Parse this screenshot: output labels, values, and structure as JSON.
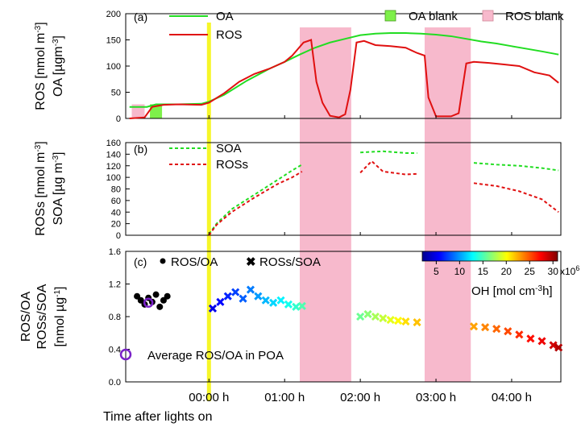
{
  "chart_data": [
    {
      "type": "line",
      "panel_label": "(a)",
      "ylabel_lines": [
        "ROS [nmol m",
        "-3",
        "]",
        "OA [µgm",
        "-3",
        "]"
      ],
      "yticks": [
        "0",
        "50",
        "100",
        "150",
        "200"
      ],
      "ylim": [
        0,
        200
      ],
      "xlim": [
        -1.1,
        4.65
      ],
      "legend": [
        {
          "name": "OA",
          "color": "#22dd22",
          "style": "solid"
        },
        {
          "name": "ROS",
          "color": "#e01010",
          "style": "solid"
        }
      ],
      "blank_legend": [
        {
          "name": "OA blank",
          "color": "#7ef04a"
        },
        {
          "name": "ROS blank",
          "color": "#f7b9cc"
        }
      ],
      "series": [
        {
          "name": "OA",
          "points": [
            [
              -1.05,
              22
            ],
            [
              -0.82,
              22
            ],
            [
              -0.7,
              27
            ],
            [
              -0.4,
              27
            ],
            [
              -0.1,
              28
            ],
            [
              0,
              32
            ],
            [
              0.2,
              45
            ],
            [
              0.5,
              72
            ],
            [
              0.8,
              95
            ],
            [
              1,
              108
            ],
            [
              1.2,
              122
            ],
            [
              1.4,
              135
            ],
            [
              1.6,
              145
            ],
            [
              1.8,
              152
            ],
            [
              2.0,
              159
            ],
            [
              2.2,
              162
            ],
            [
              2.4,
              163
            ],
            [
              2.6,
              163
            ],
            [
              2.8,
              162
            ],
            [
              3.0,
              160
            ],
            [
              3.2,
              157
            ],
            [
              3.4,
              152
            ],
            [
              3.6,
              147
            ],
            [
              3.8,
              143
            ],
            [
              4.0,
              138
            ],
            [
              4.2,
              133
            ],
            [
              4.4,
              128
            ],
            [
              4.62,
              122
            ]
          ]
        },
        {
          "name": "ROS",
          "points": [
            [
              -1.05,
              0
            ],
            [
              -0.85,
              2
            ],
            [
              -0.75,
              22
            ],
            [
              -0.6,
              26
            ],
            [
              -0.4,
              27
            ],
            [
              -0.1,
              26
            ],
            [
              0,
              30
            ],
            [
              0.2,
              48
            ],
            [
              0.4,
              70
            ],
            [
              0.6,
              85
            ],
            [
              0.8,
              95
            ],
            [
              1.0,
              108
            ],
            [
              1.1,
              120
            ],
            [
              1.25,
              145
            ],
            [
              1.35,
              150
            ],
            [
              1.42,
              70
            ],
            [
              1.5,
              30
            ],
            [
              1.6,
              5
            ],
            [
              1.72,
              2
            ],
            [
              1.8,
              8
            ],
            [
              1.87,
              55
            ],
            [
              1.95,
              145
            ],
            [
              2.05,
              148
            ],
            [
              2.2,
              140
            ],
            [
              2.4,
              138
            ],
            [
              2.6,
              135
            ],
            [
              2.75,
              125
            ],
            [
              2.85,
              120
            ],
            [
              2.9,
              40
            ],
            [
              3.0,
              4
            ],
            [
              3.2,
              4
            ],
            [
              3.3,
              10
            ],
            [
              3.4,
              105
            ],
            [
              3.5,
              108
            ],
            [
              3.7,
              106
            ],
            [
              3.9,
              103
            ],
            [
              4.1,
              100
            ],
            [
              4.3,
              88
            ],
            [
              4.5,
              82
            ],
            [
              4.62,
              68
            ]
          ]
        }
      ]
    },
    {
      "type": "line",
      "panel_label": "(b)",
      "ylabel_lines": [
        "ROSs [nmol m",
        "-3",
        "]",
        "SOA [µg m",
        "-3",
        "]"
      ],
      "yticks": [
        "0",
        "20",
        "40",
        "60",
        "80",
        "100",
        "120",
        "140",
        "160"
      ],
      "ylim": [
        0,
        160
      ],
      "legend": [
        {
          "name": "SOA",
          "color": "#22dd22",
          "style": "dashed"
        },
        {
          "name": "ROSs",
          "color": "#e01010",
          "style": "dashed"
        }
      ],
      "series": [
        {
          "name": "SOA",
          "segments": [
            [
              [
                0.0,
                2
              ],
              [
                0.1,
                20
              ],
              [
                0.3,
                45
              ],
              [
                0.6,
                70
              ],
              [
                0.9,
                95
              ],
              [
                1.1,
                112
              ],
              [
                1.23,
                122
              ]
            ],
            [
              [
                2.0,
                143
              ],
              [
                2.3,
                145
              ],
              [
                2.6,
                142
              ],
              [
                2.75,
                142
              ]
            ],
            [
              [
                3.5,
                125
              ],
              [
                3.8,
                122
              ],
              [
                4.1,
                120
              ],
              [
                4.4,
                116
              ],
              [
                4.62,
                112
              ]
            ]
          ]
        },
        {
          "name": "ROSs",
          "segments": [
            [
              [
                0.0,
                0
              ],
              [
                0.1,
                18
              ],
              [
                0.3,
                40
              ],
              [
                0.6,
                65
              ],
              [
                0.9,
                88
              ],
              [
                1.1,
                100
              ],
              [
                1.23,
                110
              ]
            ],
            [
              [
                2.0,
                108
              ],
              [
                2.15,
                128
              ],
              [
                2.3,
                110
              ],
              [
                2.6,
                105
              ],
              [
                2.75,
                106
              ]
            ],
            [
              [
                3.5,
                90
              ],
              [
                3.8,
                85
              ],
              [
                4.1,
                76
              ],
              [
                4.4,
                62
              ],
              [
                4.62,
                40
              ]
            ]
          ]
        }
      ]
    },
    {
      "type": "scatter",
      "panel_label": "(c)",
      "ylabel_lines": [
        "ROS/OA",
        "ROSs/SOA",
        "[nmol µg",
        "-1",
        "]"
      ],
      "yticks": [
        "0.0",
        "0.4",
        "0.8",
        "1.2",
        "1.6"
      ],
      "ylim": [
        0,
        1.6
      ],
      "legend": [
        {
          "name": "ROS/OA",
          "marker": "circle"
        },
        {
          "name": "ROSs/SOA",
          "marker": "x"
        },
        {
          "name": "Average ROS/OA in POA",
          "marker": "open-circle",
          "color": "#7a22c8"
        }
      ],
      "ros_oa_points": [
        [
          -0.95,
          1.05
        ],
        [
          -0.9,
          1.0
        ],
        [
          -0.85,
          0.95
        ],
        [
          -0.8,
          1.03
        ],
        [
          -0.75,
          0.98
        ],
        [
          -0.7,
          1.07
        ],
        [
          -0.65,
          0.92
        ],
        [
          -0.6,
          1.0
        ],
        [
          -0.55,
          1.05
        ]
      ],
      "average_ros_oa": [
        -0.8,
        0.97
      ],
      "ross_soa_points": [
        [
          0.05,
          0.9
        ],
        [
          0.15,
          0.98
        ],
        [
          0.25,
          1.05
        ],
        [
          0.35,
          1.1
        ],
        [
          0.45,
          1.02
        ],
        [
          0.55,
          1.13
        ],
        [
          0.65,
          1.05
        ],
        [
          0.75,
          1.0
        ],
        [
          0.85,
          0.97
        ],
        [
          0.95,
          1.0
        ],
        [
          1.05,
          0.95
        ],
        [
          1.15,
          0.92
        ],
        [
          1.23,
          0.93
        ],
        [
          2.0,
          0.8
        ],
        [
          2.1,
          0.83
        ],
        [
          2.2,
          0.8
        ],
        [
          2.3,
          0.78
        ],
        [
          2.4,
          0.76
        ],
        [
          2.5,
          0.75
        ],
        [
          2.6,
          0.74
        ],
        [
          2.75,
          0.73
        ],
        [
          3.5,
          0.68
        ],
        [
          3.65,
          0.67
        ],
        [
          3.8,
          0.65
        ],
        [
          3.95,
          0.62
        ],
        [
          4.1,
          0.58
        ],
        [
          4.25,
          0.53
        ],
        [
          4.4,
          0.5
        ],
        [
          4.55,
          0.45
        ],
        [
          4.62,
          0.42
        ]
      ],
      "colorbar": {
        "label": "OH [mol cm",
        "label_sup": "-3",
        "label_tail": "h]",
        "ticks": [
          "5",
          "10",
          "15",
          "20",
          "25",
          "30"
        ],
        "multiplier": "x10",
        "multiplier_exp": "6",
        "range": [
          2,
          31
        ]
      }
    }
  ],
  "x_axis": {
    "ticks": [
      {
        "x": 0,
        "label": "00:00 h"
      },
      {
        "x": 1,
        "label": "01:00 h"
      },
      {
        "x": 2,
        "label": "02:00 h"
      },
      {
        "x": 3,
        "label": "03:00 h"
      },
      {
        "x": 4,
        "label": "04:00 h"
      }
    ],
    "xlabel": "Time after lights on"
  },
  "lights_on_x": 0,
  "lights_on_color": "#f6f628",
  "blanks": {
    "ros": [
      [
        1.2,
        1.88
      ],
      [
        2.85,
        3.46
      ]
    ],
    "oa_initial": [
      -0.78,
      -0.62
    ],
    "ros_initial": [
      -1.02,
      -0.85
    ]
  },
  "colors": {
    "oa": "#22dd22",
    "ros": "#e01010",
    "ros_blank": "#f7b9cc",
    "oa_blank": "#7ef04a",
    "avg_circle": "#7a22c8"
  }
}
